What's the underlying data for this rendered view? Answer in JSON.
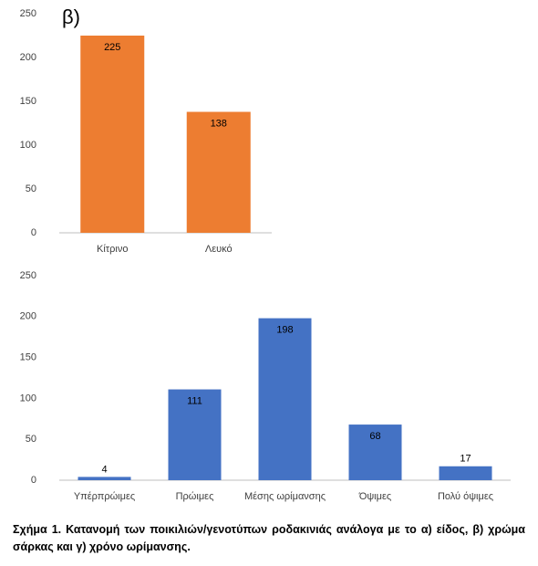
{
  "chart_data": [
    {
      "type": "bar",
      "label": "β)",
      "categories": [
        "Κίτρινο",
        "Λευκό"
      ],
      "values": [
        225,
        138
      ],
      "color": "#ed7d31",
      "ylim": [
        0,
        250
      ],
      "yticks": [
        0,
        50,
        100,
        150,
        200,
        250
      ],
      "grid": false
    },
    {
      "type": "bar",
      "categories": [
        "Υπέρπρώιμες",
        "Πρώιμες",
        "Μέσης ωρίμανσης",
        "Όψιμες",
        "Πολύ όψιμες"
      ],
      "values": [
        4,
        111,
        198,
        68,
        17
      ],
      "color": "#4472c4",
      "ylim": [
        0,
        250
      ],
      "yticks": [
        0,
        50,
        100,
        150,
        200,
        250
      ],
      "grid": false
    }
  ],
  "caption": "Σχήμα 1. Κατανομή των ποικιλιών/γενοτύπων ροδακινιάς ανάλογα με το α) είδος, β) χρώμα σάρκας και γ) χρόνο ωρίμανσης."
}
